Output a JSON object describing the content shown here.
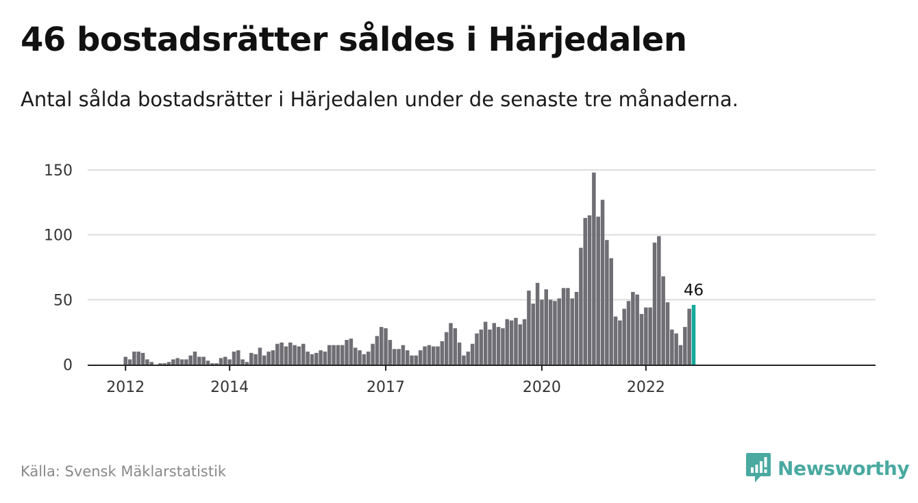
{
  "title": "46 bostadsrätter såldes i Härjedalen",
  "subtitle": "Antal sålda bostadsrätter i Härjedalen under de senaste tre månaderna.",
  "source": "Källa: Svensk Mäklarstatistik",
  "brand": {
    "name": "Newsworthy",
    "color": "#4aa9a1"
  },
  "colors": {
    "bar": "#6e6e74",
    "highlight": "#14a99a",
    "grid": "#dddddd",
    "axis": "#222222"
  },
  "chart_data": {
    "type": "bar",
    "x_start": "2012-01",
    "frequency": "monthly",
    "x_tick_labels": [
      "2012",
      "2014",
      "2017",
      "2020",
      "2022"
    ],
    "values": [
      6,
      4,
      10,
      10,
      9,
      4,
      2,
      0,
      1,
      1,
      2,
      4,
      5,
      4,
      4,
      7,
      10,
      6,
      6,
      3,
      1,
      1,
      5,
      6,
      4,
      10,
      11,
      4,
      2,
      9,
      8,
      13,
      7,
      10,
      11,
      16,
      17,
      14,
      17,
      15,
      14,
      16,
      10,
      8,
      9,
      11,
      10,
      15,
      15,
      15,
      15,
      19,
      20,
      13,
      11,
      8,
      10,
      16,
      22,
      29,
      28,
      19,
      12,
      12,
      15,
      11,
      7,
      7,
      11,
      14,
      15,
      14,
      14,
      18,
      25,
      32,
      28,
      17,
      7,
      10,
      16,
      24,
      27,
      33,
      27,
      32,
      29,
      28,
      35,
      34,
      36,
      31,
      35,
      57,
      47,
      63,
      50,
      58,
      50,
      49,
      51,
      59,
      59,
      51,
      56,
      90,
      113,
      115,
      148,
      114,
      127,
      96,
      82,
      37,
      34,
      43,
      49,
      56,
      54,
      39,
      44,
      44,
      94,
      99,
      68,
      48,
      27,
      24,
      15,
      29,
      43,
      46
    ],
    "highlight_last": true,
    "highlight_label": "46",
    "ylim": [
      0,
      150
    ],
    "yticks": [
      0,
      50,
      100,
      150
    ],
    "grid": true,
    "xlabel": "",
    "ylabel": ""
  }
}
